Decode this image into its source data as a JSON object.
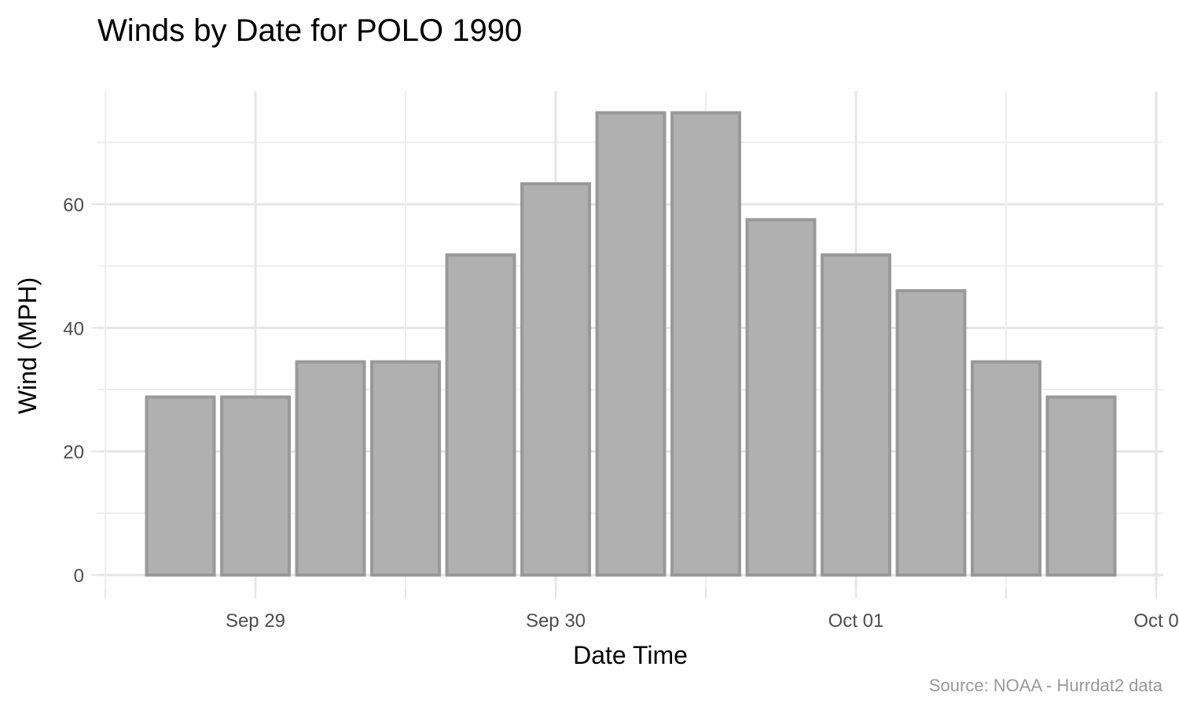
{
  "chart_data": {
    "type": "bar",
    "title": "Winds by Date for POLO 1990",
    "xlabel": "Date Time",
    "ylabel": "Wind (MPH)",
    "caption": "Source: NOAA - Hurrdat2 data",
    "x": [
      "1990-09-28 18:00",
      "1990-09-29 00:00",
      "1990-09-29 06:00",
      "1990-09-29 12:00",
      "1990-09-29 18:00",
      "1990-09-30 00:00",
      "1990-09-30 06:00",
      "1990-09-30 12:00",
      "1990-09-30 18:00",
      "1990-10-01 00:00",
      "1990-10-01 06:00",
      "1990-10-01 12:00",
      "1990-10-01 18:00"
    ],
    "values": [
      28.8,
      28.8,
      34.5,
      34.5,
      51.8,
      63.3,
      74.8,
      74.8,
      57.5,
      51.8,
      46.0,
      34.5,
      28.8
    ],
    "ylim": [
      0,
      80
    ],
    "y_ticks": [
      0,
      20,
      40,
      60
    ],
    "x_ticks": [
      {
        "date": "1990-09-29",
        "label": "Sep 29"
      },
      {
        "date": "1990-09-30",
        "label": "Sep 30"
      },
      {
        "date": "1990-10-01",
        "label": "Oct 01"
      },
      {
        "date": "1990-10-02",
        "label": "Oct 0"
      }
    ],
    "grid": true,
    "colors": {
      "bar_fill": "#b0b0b0",
      "bar_outline": "#999999"
    }
  }
}
